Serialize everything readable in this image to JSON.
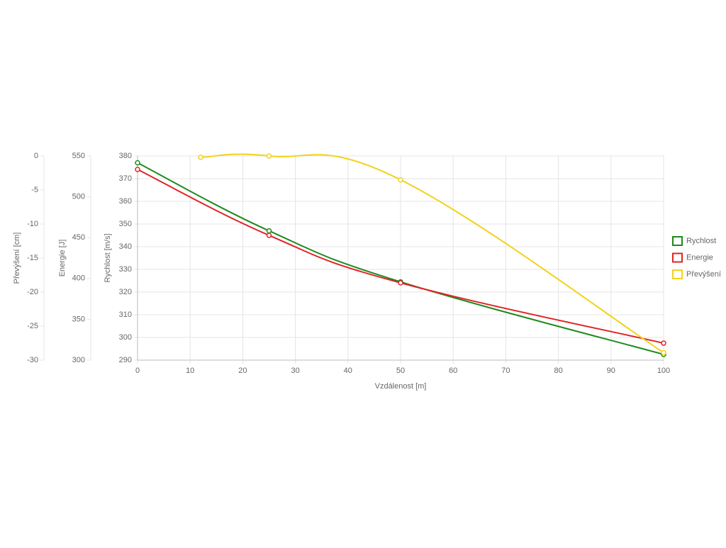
{
  "chart_data": {
    "type": "line",
    "x_label": "Vzdálenost [m]",
    "y_label": "Rychlost [m/s]",
    "y2_label": "Energie [J]",
    "y3_label": "Převýšení [cm]",
    "xlim": [
      0,
      100
    ],
    "xticks": [
      0,
      10,
      20,
      30,
      40,
      50,
      60,
      70,
      80,
      90,
      100
    ],
    "ylim": [
      290,
      380
    ],
    "yticks": [
      290,
      300,
      310,
      320,
      330,
      340,
      350,
      360,
      370,
      380
    ],
    "y2lim": [
      300,
      550
    ],
    "y2ticks": [
      300,
      350,
      400,
      450,
      500,
      550
    ],
    "y3lim": [
      -30,
      0
    ],
    "y3ticks": [
      -30,
      -25,
      -20,
      -15,
      -10,
      -5,
      0
    ],
    "grid": true,
    "legend": "right",
    "series": [
      {
        "name": "Rychlost",
        "color": "#1e8a1e",
        "axis": "y",
        "x": [
          0,
          25,
          50,
          100
        ],
        "values": [
          377,
          347,
          324.5,
          292.5
        ]
      },
      {
        "name": "Energie",
        "color": "#e02424",
        "axis": "y2",
        "x": [
          0,
          25,
          50,
          100
        ],
        "values": [
          533.5,
          452.8,
          394.6,
          320.8
        ]
      },
      {
        "name": "Převýšení",
        "color": "#f2d21b",
        "axis": "y3",
        "x": [
          12,
          25,
          50,
          100
        ],
        "values": [
          -0.2,
          0,
          -3.5,
          -28.9
        ]
      }
    ]
  }
}
